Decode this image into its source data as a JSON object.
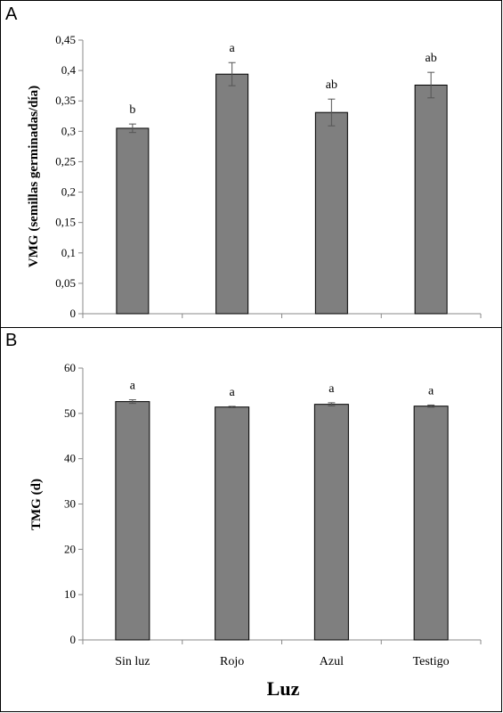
{
  "colors": {
    "bar": "#7f7f7f",
    "axis": "#888888",
    "error": "#555555"
  },
  "chart_data": [
    {
      "type": "bar",
      "panel": "A",
      "categories": [
        "Sin luz",
        "Rojo",
        "Azul",
        "Testigo"
      ],
      "values": [
        0.305,
        0.394,
        0.331,
        0.376
      ],
      "errors": [
        0.007,
        0.019,
        0.022,
        0.021
      ],
      "significance": [
        "b",
        "a",
        "ab",
        "ab"
      ],
      "ylabel": "VMG (semillas germinadas/día)",
      "xlabel": "",
      "ylim": [
        0,
        0.45
      ],
      "yticks": [
        0,
        0.05,
        0.1,
        0.15,
        0.2,
        0.25,
        0.3,
        0.35,
        0.4,
        0.45
      ],
      "ytick_labels": [
        "0",
        "0,05",
        "0,1",
        "0,15",
        "0,2",
        "0,25",
        "0,3",
        "0,35",
        "0,4",
        "0,45"
      ],
      "show_category_labels": false
    },
    {
      "type": "bar",
      "panel": "B",
      "categories": [
        "Sin luz",
        "Rojo",
        "Azul",
        "Testigo"
      ],
      "values": [
        52.6,
        51.4,
        52.0,
        51.6
      ],
      "errors": [
        0.4,
        0.15,
        0.35,
        0.25
      ],
      "significance": [
        "a",
        "a",
        "a",
        "a"
      ],
      "ylabel": "TMG (d)",
      "xlabel": "Luz",
      "ylim": [
        0,
        60
      ],
      "yticks": [
        0,
        10,
        20,
        30,
        40,
        50,
        60
      ],
      "ytick_labels": [
        "0",
        "10",
        "20",
        "30",
        "40",
        "50",
        "60"
      ],
      "show_category_labels": true
    }
  ]
}
